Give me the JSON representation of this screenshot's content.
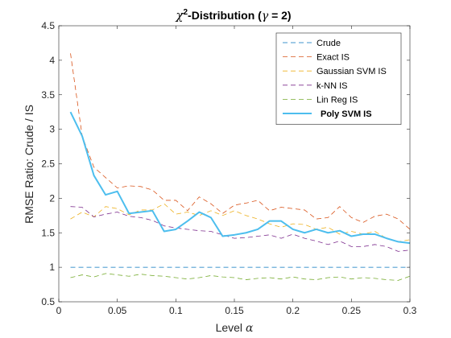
{
  "chart_data": {
    "type": "line",
    "title": {
      "chi": "χ",
      "sup": "2",
      "mid": "-Distribution (",
      "gamma": "γ",
      "end": " = 2)"
    },
    "xlabel": {
      "text": "Level ",
      "sym": "α"
    },
    "ylabel": "RMSE Ratio: Crude / IS",
    "xlim": [
      0,
      0.3
    ],
    "ylim": [
      0.5,
      4.5
    ],
    "xticks": [
      0,
      0.05,
      0.1,
      0.15,
      0.2,
      0.25,
      0.3
    ],
    "xtick_labels": [
      "0",
      "0.05",
      "0.1",
      "0.15",
      "0.2",
      "0.25",
      "0.3"
    ],
    "yticks": [
      0.5,
      1,
      1.5,
      2,
      2.5,
      3,
      3.5,
      4,
      4.5
    ],
    "ytick_labels": [
      "0.5",
      "1",
      "1.5",
      "2",
      "2.5",
      "3",
      "3.5",
      "4",
      "4.5"
    ],
    "grid": false,
    "legend_position": "top-right",
    "x": [
      0.01,
      0.02,
      0.03,
      0.04,
      0.05,
      0.06,
      0.07,
      0.08,
      0.09,
      0.1,
      0.11,
      0.12,
      0.13,
      0.14,
      0.15,
      0.16,
      0.17,
      0.18,
      0.19,
      0.2,
      0.21,
      0.22,
      0.23,
      0.24,
      0.25,
      0.26,
      0.27,
      0.28,
      0.29,
      0.3
    ],
    "series": [
      {
        "name": "Crude",
        "color": "#0072BD",
        "dash": "dashed",
        "bold": false,
        "values": [
          1,
          1,
          1,
          1,
          1,
          1,
          1,
          1,
          1,
          1,
          1,
          1,
          1,
          1,
          1,
          1,
          1,
          1,
          1,
          1,
          1,
          1,
          1,
          1,
          1,
          1,
          1,
          1,
          1,
          1
        ]
      },
      {
        "name": "Exact IS",
        "color": "#D95319",
        "dash": "dashed",
        "bold": false,
        "values": [
          4.1,
          2.9,
          2.45,
          2.3,
          2.15,
          2.18,
          2.17,
          2.12,
          1.97,
          1.97,
          1.82,
          2.02,
          1.92,
          1.78,
          1.9,
          1.93,
          1.97,
          1.82,
          1.87,
          1.85,
          1.83,
          1.7,
          1.72,
          1.88,
          1.72,
          1.65,
          1.74,
          1.77,
          1.7,
          1.55
        ]
      },
      {
        "name": "Gaussian SVM IS",
        "color": "#EDB120",
        "dash": "dashed",
        "bold": false,
        "values": [
          1.7,
          1.8,
          1.73,
          1.88,
          1.85,
          1.76,
          1.83,
          1.83,
          1.92,
          1.77,
          1.8,
          1.75,
          1.82,
          1.75,
          1.82,
          1.75,
          1.7,
          1.63,
          1.58,
          1.63,
          1.62,
          1.55,
          1.58,
          1.48,
          1.52,
          1.48,
          1.52,
          1.42,
          1.37,
          1.4
        ]
      },
      {
        "name": "k-NN IS",
        "color": "#7E2F8E",
        "dash": "dashed",
        "bold": false,
        "values": [
          1.88,
          1.87,
          1.73,
          1.77,
          1.8,
          1.74,
          1.72,
          1.68,
          1.6,
          1.57,
          1.55,
          1.53,
          1.52,
          1.47,
          1.42,
          1.43,
          1.45,
          1.47,
          1.42,
          1.48,
          1.42,
          1.38,
          1.33,
          1.38,
          1.3,
          1.3,
          1.33,
          1.3,
          1.23,
          1.25
        ]
      },
      {
        "name": "Lin Reg IS",
        "color": "#77AC30",
        "dash": "dashed",
        "bold": false,
        "values": [
          0.85,
          0.89,
          0.86,
          0.91,
          0.89,
          0.87,
          0.9,
          0.88,
          0.87,
          0.85,
          0.83,
          0.85,
          0.88,
          0.86,
          0.85,
          0.82,
          0.84,
          0.85,
          0.83,
          0.86,
          0.83,
          0.82,
          0.85,
          0.86,
          0.83,
          0.85,
          0.84,
          0.82,
          0.81,
          0.87
        ]
      },
      {
        "name": "Poly SVM IS",
        "color": "#4DBEEE",
        "dash": "solid",
        "bold": true,
        "values": [
          3.25,
          2.9,
          2.33,
          2.05,
          2.1,
          1.78,
          1.8,
          1.82,
          1.52,
          1.55,
          1.67,
          1.8,
          1.72,
          1.45,
          1.47,
          1.5,
          1.55,
          1.67,
          1.67,
          1.55,
          1.5,
          1.55,
          1.5,
          1.53,
          1.45,
          1.48,
          1.48,
          1.42,
          1.37,
          1.35
        ]
      }
    ]
  }
}
